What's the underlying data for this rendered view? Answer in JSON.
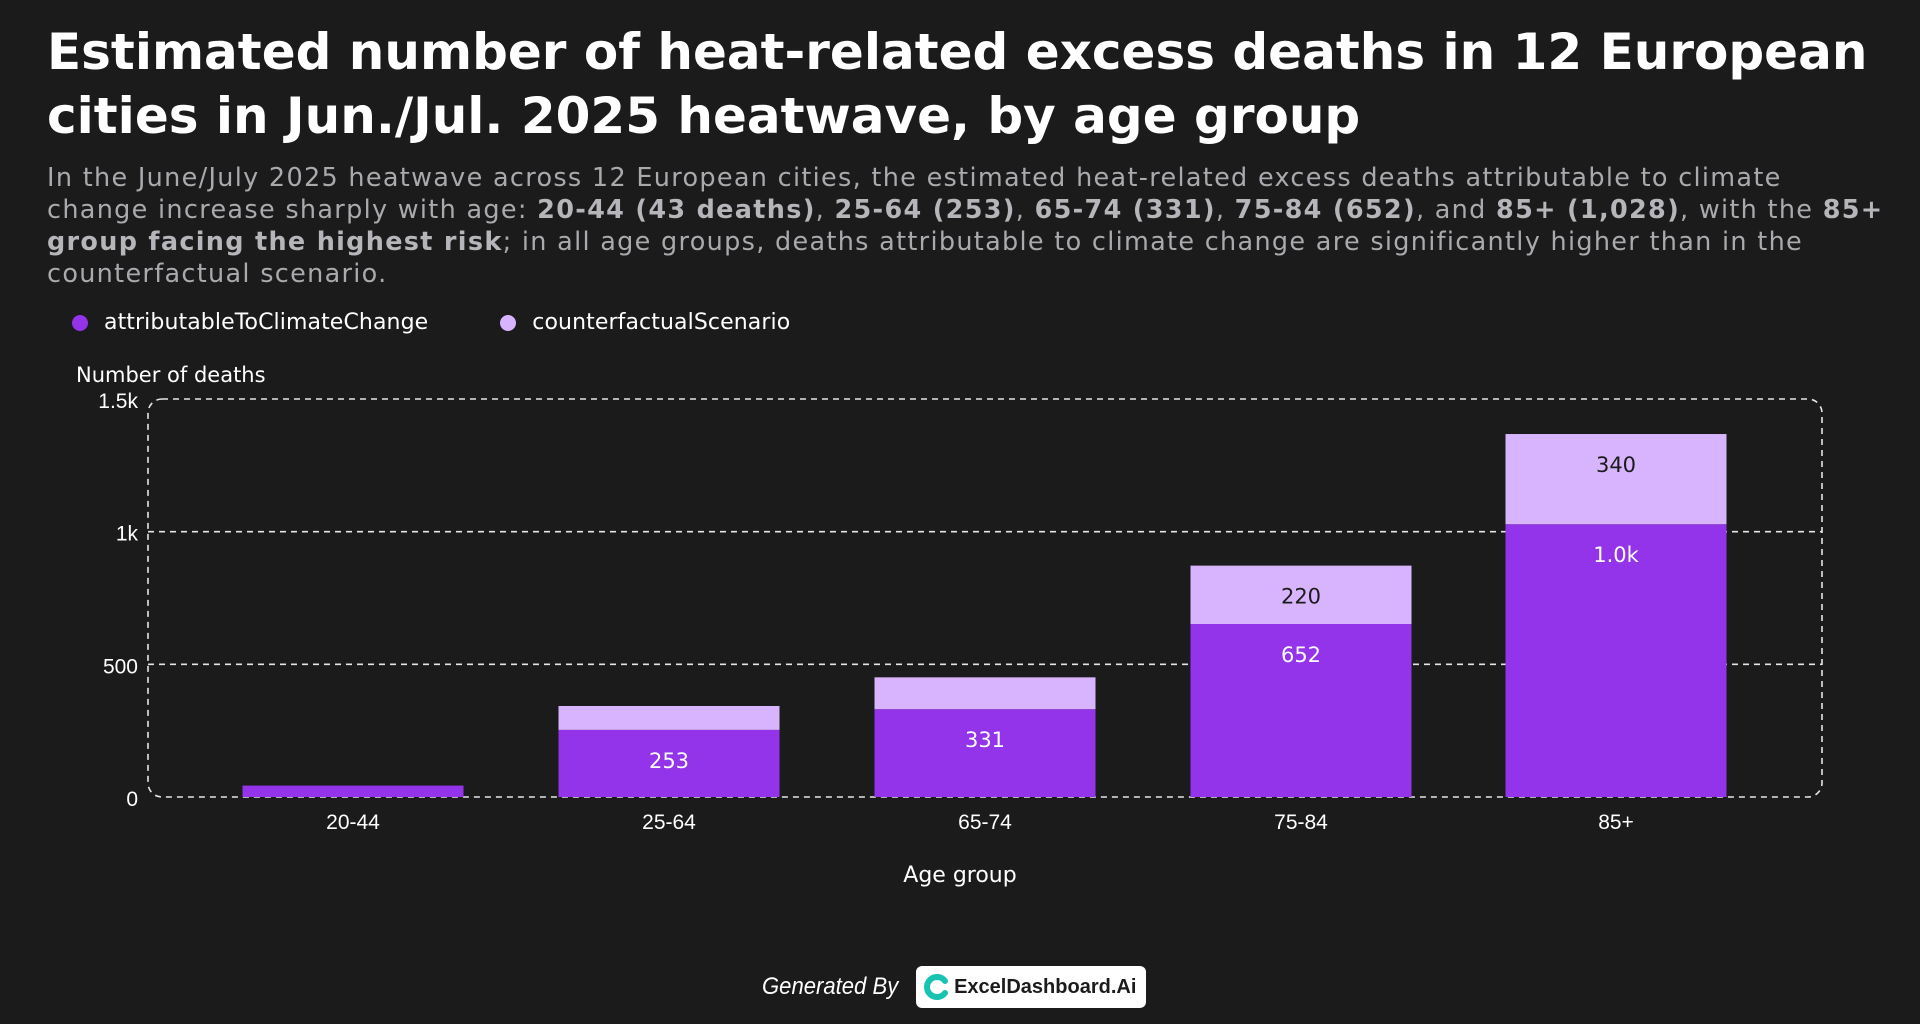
{
  "title": "Estimated number of heat-related excess deaths in 12 European cities in Jun./Jul. 2025 heatwave, by age group",
  "subtitle_parts": [
    {
      "text": "In the June/July 2025 heatwave across 12 European cities, the estimated heat-related excess deaths attributable to climate change increase sharply with age: ",
      "bold": false
    },
    {
      "text": "20-44 (43 deaths)",
      "bold": true
    },
    {
      "text": ", ",
      "bold": false
    },
    {
      "text": "25-64 (253)",
      "bold": true
    },
    {
      "text": ", ",
      "bold": false
    },
    {
      "text": "65-74 (331)",
      "bold": true
    },
    {
      "text": ", ",
      "bold": false
    },
    {
      "text": "75-84 (652)",
      "bold": true
    },
    {
      "text": ", and ",
      "bold": false
    },
    {
      "text": "85+ (1,028)",
      "bold": true
    },
    {
      "text": ", with the ",
      "bold": false
    },
    {
      "text": "85+ group facing the highest risk",
      "bold": true
    },
    {
      "text": "; in all age groups, deaths attributable to climate change are significantly higher than in the counterfactual scenario.",
      "bold": false
    }
  ],
  "legend": [
    {
      "label": "attributableToClimateChange",
      "color": "#9333ea"
    },
    {
      "label": "counterfactualScenario",
      "color": "#d8b4fe"
    }
  ],
  "chart_data": {
    "type": "bar",
    "stacked": true,
    "categories": [
      "20-44",
      "25-64",
      "65-74",
      "75-84",
      "85+"
    ],
    "series": [
      {
        "name": "attributableToClimateChange",
        "color": "#9333ea",
        "values": [
          43,
          253,
          331,
          652,
          1028
        ],
        "labels": [
          "",
          "253",
          "331",
          "652",
          "1.0k"
        ]
      },
      {
        "name": "counterfactualScenario",
        "color": "#d8b4fe",
        "values": [
          0,
          90,
          120,
          220,
          340
        ],
        "labels": [
          "",
          "",
          "",
          "220",
          "340"
        ]
      }
    ],
    "xlabel": "Age group",
    "ylabel": "Number of deaths",
    "ylim": [
      0,
      1500
    ],
    "yticks": [
      {
        "value": 0,
        "label": "0"
      },
      {
        "value": 500,
        "label": "500"
      },
      {
        "value": 1000,
        "label": "1k"
      },
      {
        "value": 1500,
        "label": "1.5k"
      }
    ],
    "grid": true,
    "legend_position": "top-left"
  },
  "footer": {
    "generated_by": "Generated By",
    "brand": "ExcelDashboard.Ai"
  }
}
